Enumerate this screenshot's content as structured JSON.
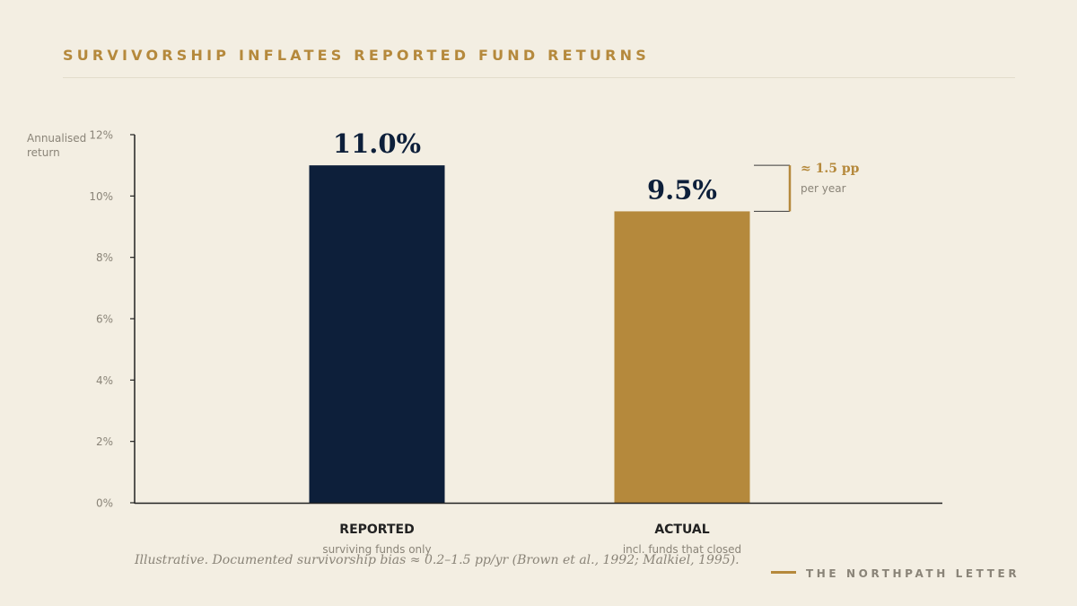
{
  "title": "SURVIVORSHIP INFLATES REPORTED FUND RETURNS",
  "footnote": "Illustrative. Documented survivorship bias ≈ 0.2–1.5 pp/yr (Brown et al., 1992; Malkiel, 1995).",
  "brand": "THE NORTHPATH LETTER",
  "colors": {
    "background": "#f3eee2",
    "accent": "#b5893c",
    "navy": "#0d1f3a",
    "axis": "#222222",
    "muted": "#8a8478"
  },
  "chart_data": {
    "type": "bar",
    "ylabel_lines": [
      "Annualised",
      "return"
    ],
    "ylim": [
      0,
      12
    ],
    "yticks": [
      0,
      2,
      4,
      6,
      8,
      10,
      12
    ],
    "ytick_labels": [
      "0%",
      "2%",
      "4%",
      "6%",
      "8%",
      "10%",
      "12%"
    ],
    "grid": false,
    "bars": [
      {
        "category": "REPORTED",
        "sublabel": "surviving funds only",
        "value": 11.0,
        "value_label": "11.0%",
        "color": "#0d1f3a"
      },
      {
        "category": "ACTUAL",
        "sublabel": "incl. funds that closed",
        "value": 9.5,
        "value_label": "9.5%",
        "color": "#b5893c"
      }
    ],
    "annotation": {
      "from_value": 11.0,
      "to_value": 9.5,
      "label": "≈ 1.5 pp",
      "sublabel": "per year"
    }
  }
}
